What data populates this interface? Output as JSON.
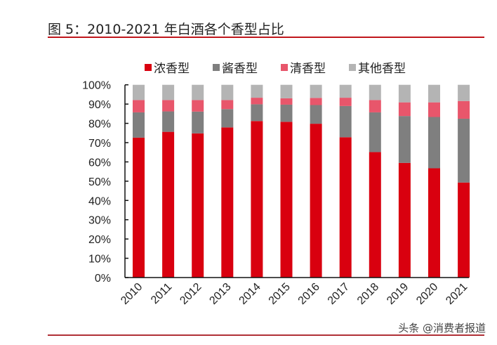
{
  "title": "图 5：2010-2021 年白酒各个香型占比",
  "watermark": "头条 @消费者报道",
  "chart_data": {
    "type": "bar",
    "stacked": true,
    "title": "",
    "xlabel": "",
    "ylabel": "",
    "ylim": [
      0,
      100
    ],
    "y_ticks": [
      "0%",
      "10%",
      "20%",
      "30%",
      "40%",
      "50%",
      "60%",
      "70%",
      "80%",
      "90%",
      "100%"
    ],
    "grid": false,
    "legend_position": "top",
    "categories": [
      "2010",
      "2011",
      "2012",
      "2013",
      "2014",
      "2015",
      "2016",
      "2017",
      "2018",
      "2019",
      "2020",
      "2021"
    ],
    "series": [
      {
        "name": "浓香型",
        "color": "#d9000f",
        "values": [
          72.6,
          75.6,
          74.8,
          77.9,
          81.2,
          80.8,
          79.8,
          72.8,
          65.1,
          59.5,
          56.7,
          49.3
        ]
      },
      {
        "name": "酱香型",
        "color": "#7f7f7f",
        "values": [
          13.1,
          10.6,
          11.3,
          9.5,
          8.7,
          8.9,
          9.7,
          16.2,
          20.6,
          24.3,
          26.6,
          33.1
        ]
      },
      {
        "name": "清香型",
        "color": "#e8566b",
        "values": [
          6.4,
          5.9,
          6.0,
          4.7,
          3.4,
          3.3,
          3.7,
          4.3,
          6.4,
          7.1,
          7.6,
          9.2
        ]
      },
      {
        "name": "其他香型",
        "color": "#b4b4b4",
        "values": [
          7.9,
          7.9,
          7.9,
          7.9,
          6.7,
          7.0,
          6.8,
          6.7,
          7.9,
          9.1,
          9.1,
          8.4
        ]
      }
    ]
  }
}
